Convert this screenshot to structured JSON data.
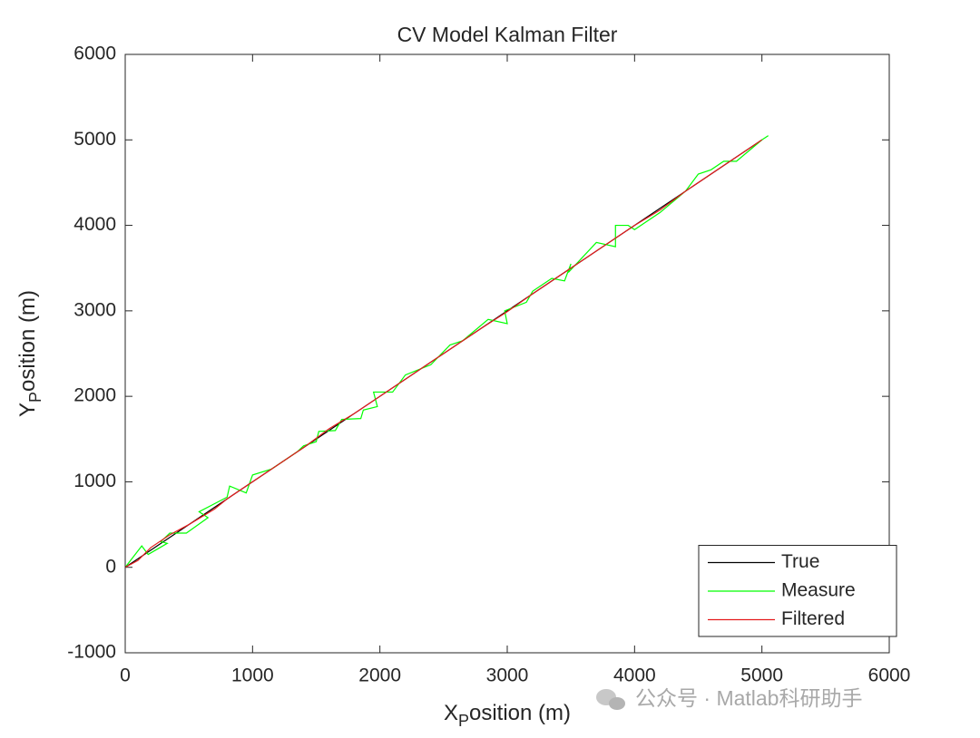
{
  "chart_data": {
    "type": "line",
    "title": "CV Model Kalman Filter",
    "xlabel": {
      "main": "X",
      "sub": "P",
      "rest": "osition (m)"
    },
    "ylabel": {
      "main": "Y",
      "sub": "P",
      "rest": "osition (m)"
    },
    "xlim": [
      0,
      6000
    ],
    "ylim": [
      -1000,
      6000
    ],
    "xticks": [
      0,
      1000,
      2000,
      3000,
      4000,
      5000,
      6000
    ],
    "yticks": [
      -1000,
      0,
      1000,
      2000,
      3000,
      4000,
      5000,
      6000
    ],
    "legend": "bottom-right",
    "series": [
      {
        "name": "True",
        "color": "#000000",
        "x": [
          0,
          5000
        ],
        "values": [
          0,
          5000
        ]
      },
      {
        "name": "Measure",
        "color": "#00ff00",
        "x": [
          0,
          130,
          180,
          330,
          280,
          350,
          480,
          650,
          580,
          800,
          820,
          950,
          1000,
          1150,
          1350,
          1400,
          1500,
          1520,
          1650,
          1700,
          1850,
          1870,
          1980,
          1950,
          2100,
          2200,
          2400,
          2550,
          2650,
          2850,
          3000,
          2980,
          3150,
          3200,
          3350,
          3450,
          3500,
          3480,
          3700,
          3850,
          3850,
          3950,
          4000,
          4200,
          4400,
          4500,
          4600,
          4700,
          4800,
          5000,
          5050
        ],
        "values": [
          0,
          250,
          150,
          280,
          300,
          400,
          400,
          580,
          650,
          820,
          950,
          870,
          1080,
          1150,
          1350,
          1420,
          1470,
          1590,
          1600,
          1730,
          1740,
          1840,
          1880,
          2050,
          2050,
          2250,
          2370,
          2600,
          2650,
          2900,
          2850,
          3000,
          3100,
          3230,
          3380,
          3350,
          3550,
          3450,
          3800,
          3750,
          4000,
          4000,
          3950,
          4150,
          4400,
          4600,
          4650,
          4750,
          4750,
          5000,
          5050
        ]
      },
      {
        "name": "Filtered",
        "color": "#e41a1c",
        "x": [
          0,
          100,
          200,
          350,
          500,
          700,
          800,
          1000,
          1200,
          1400,
          1600,
          1800,
          2000,
          2200,
          2400,
          2600,
          2800,
          3000,
          3200,
          3400,
          3600,
          3800,
          4000,
          4200,
          4400,
          4600,
          4800,
          5000
        ],
        "values": [
          0,
          80,
          230,
          380,
          500,
          680,
          800,
          1000,
          1200,
          1400,
          1620,
          1800,
          2000,
          2200,
          2400,
          2600,
          2800,
          2990,
          3200,
          3400,
          3600,
          3800,
          4000,
          4180,
          4400,
          4600,
          4800,
          5000
        ]
      }
    ]
  },
  "watermark": "公众号 · Matlab科研助手"
}
